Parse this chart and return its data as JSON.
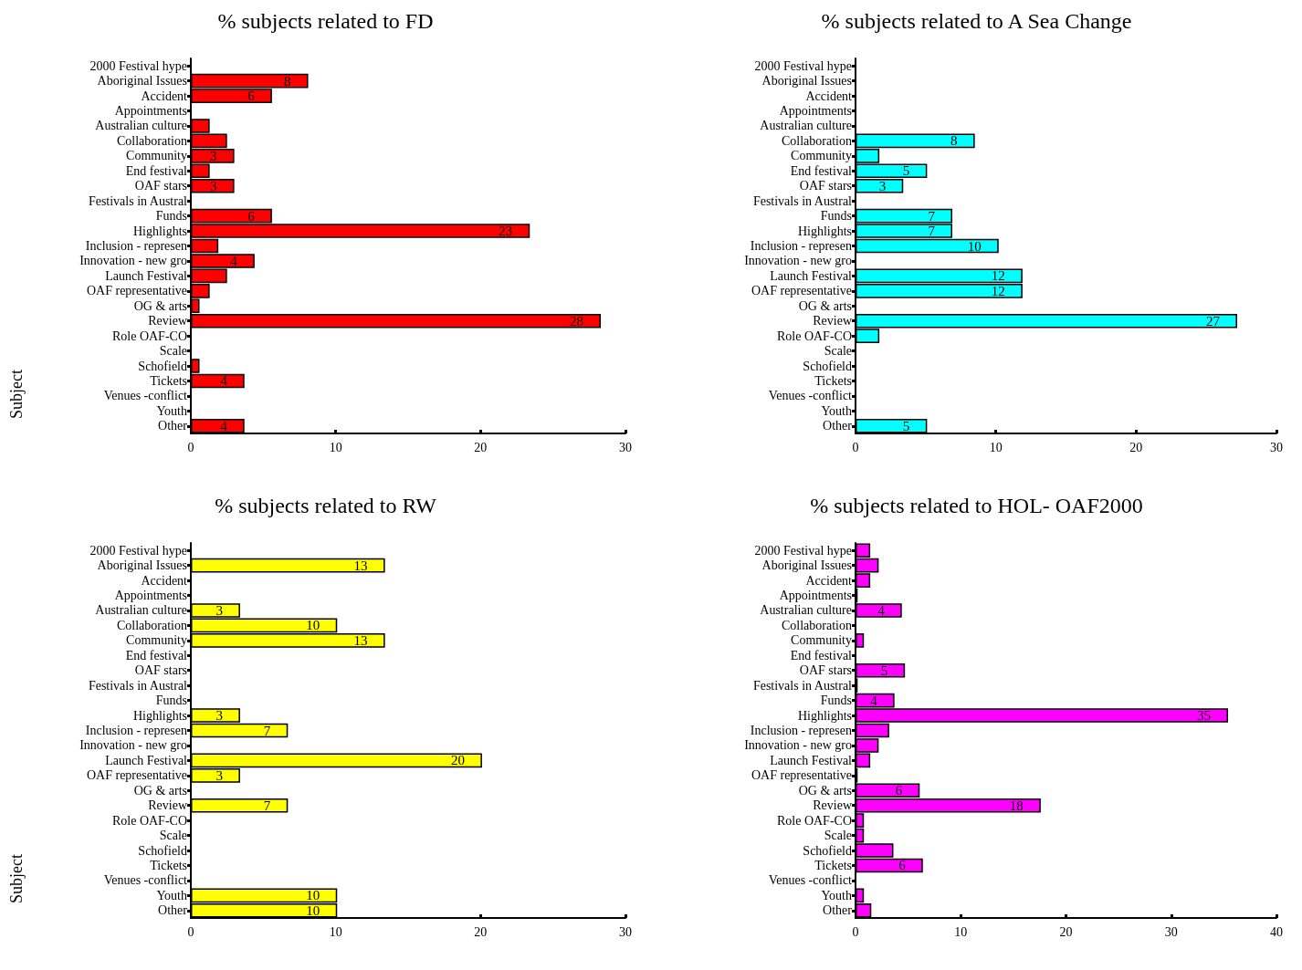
{
  "chart_data": [
    {
      "type": "bar",
      "orientation": "horizontal",
      "title": "% subjects related to FD",
      "ylabel": "Subject",
      "categories": [
        "2000 Festival hype",
        "Aboriginal Issues",
        "Accident",
        "Appointments",
        "Australian culture",
        "Collaboration",
        "Community",
        "End festival",
        "OAF stars",
        "Festivals in Austral",
        "Funds",
        "Highlights",
        "Inclusion - represen",
        "Innovation - new gro",
        "Launch Festival",
        "OAF representative",
        "OG & arts",
        "Review",
        "Role OAF-CO",
        "Scale",
        "Schofield",
        "Tickets",
        "Venues -conflict",
        "Youth",
        "Other"
      ],
      "series": [
        {
          "color": "#ff0000",
          "values": [
            0,
            8.1,
            5.6,
            0,
            1.3,
            2.5,
            3.0,
            1.3,
            3.0,
            0,
            5.6,
            23.4,
            1.9,
            4.4,
            2.5,
            1.3,
            0.6,
            28.3,
            0,
            0,
            0.6,
            3.7,
            0,
            0,
            3.7
          ],
          "value_labels": [
            null,
            "8",
            "6",
            null,
            null,
            null,
            "3",
            null,
            "3",
            null,
            "6",
            "23",
            null,
            "4",
            null,
            null,
            null,
            "28",
            null,
            null,
            null,
            "4",
            null,
            null,
            "4"
          ]
        }
      ],
      "xlim": [
        0,
        30
      ],
      "xticks": [
        0,
        10,
        20,
        30
      ],
      "grid": false
    },
    {
      "type": "bar",
      "orientation": "horizontal",
      "title": "% subjects related to A Sea Change",
      "categories": [
        "2000 Festival hype",
        "Aboriginal Issues",
        "Accident",
        "Appointments",
        "Australian culture",
        "Collaboration",
        "Community",
        "End festival",
        "OAF stars",
        "Festivals in Austral",
        "Funds",
        "Highlights",
        "Inclusion - represen",
        "Innovation - new gro",
        "Launch Festival",
        "OAF representative",
        "OG & arts",
        "Review",
        "Role OAF-CO",
        "Scale",
        "Schofield",
        "Tickets",
        "Venues -conflict",
        "Youth",
        "Other"
      ],
      "series": [
        {
          "color": "#00ffff",
          "values": [
            0,
            0,
            0,
            0,
            0,
            8.5,
            1.7,
            5.1,
            3.4,
            0,
            6.9,
            6.9,
            10.2,
            0,
            11.9,
            11.9,
            0,
            27.2,
            1.7,
            0,
            0,
            0,
            0,
            0,
            5.1
          ],
          "value_labels": [
            null,
            null,
            null,
            null,
            null,
            "8",
            null,
            "5",
            "3",
            null,
            "7",
            "7",
            "10",
            null,
            "12",
            "12",
            null,
            "27",
            null,
            null,
            null,
            null,
            null,
            null,
            "5"
          ]
        }
      ],
      "xlim": [
        0,
        30
      ],
      "xticks": [
        0,
        10,
        20,
        30
      ],
      "grid": false
    },
    {
      "type": "bar",
      "orientation": "horizontal",
      "title": "% subjects related to RW",
      "ylabel": "Subject",
      "categories": [
        "2000 Festival hype",
        "Aboriginal Issues",
        "Accident",
        "Appointments",
        "Australian culture",
        "Collaboration",
        "Community",
        "End festival",
        "OAF stars",
        "Festivals in Austral",
        "Funds",
        "Highlights",
        "Inclusion - represen",
        "Innovation - new gro",
        "Launch Festival",
        "OAF representative",
        "OG & arts",
        "Review",
        "Role OAF-CO",
        "Scale",
        "Schofield",
        "Tickets",
        "Venues -conflict",
        "Youth",
        "Other"
      ],
      "series": [
        {
          "color": "#ffff00",
          "values": [
            0,
            13.4,
            0,
            0,
            3.4,
            10.1,
            13.4,
            0,
            0,
            0,
            0,
            3.4,
            6.7,
            0,
            20.1,
            3.4,
            0,
            6.7,
            0,
            0,
            0,
            0,
            0,
            10.1,
            10.1
          ],
          "value_labels": [
            null,
            "13",
            null,
            null,
            "3",
            "10",
            "13",
            null,
            null,
            null,
            null,
            "3",
            "7",
            null,
            "20",
            "3",
            null,
            "7",
            null,
            null,
            null,
            null,
            null,
            "10",
            "10"
          ]
        }
      ],
      "xlim": [
        0,
        30
      ],
      "xticks": [
        0,
        10,
        20,
        30
      ],
      "grid": false
    },
    {
      "type": "bar",
      "orientation": "horizontal",
      "title": "% subjects related to HOL- OAF2000",
      "categories": [
        "2000 Festival hype",
        "Aboriginal Issues",
        "Accident",
        "Appointments",
        "Australian culture",
        "Collaboration",
        "Community",
        "End festival",
        "OAF stars",
        "Festivals in Austral",
        "Funds",
        "Highlights",
        "Inclusion - represen",
        "Innovation - new gro",
        "Launch Festival",
        "OAF representative",
        "OG & arts",
        "Review",
        "Role OAF-CO",
        "Scale",
        "Schofield",
        "Tickets",
        "Venues -conflict",
        "Youth",
        "Other"
      ],
      "series": [
        {
          "color": "#ff00ff",
          "values": [
            1.4,
            2.2,
            1.4,
            0.2,
            4.4,
            0,
            0.8,
            0,
            4.7,
            0.2,
            3.7,
            35.4,
            3.2,
            2.2,
            1.4,
            0.2,
            6.1,
            17.6,
            0.8,
            0.8,
            3.6,
            6.4,
            0,
            0.8,
            1.5
          ],
          "value_labels": [
            null,
            null,
            null,
            null,
            "4",
            null,
            null,
            null,
            "5",
            null,
            "4",
            "35",
            null,
            null,
            null,
            null,
            "6",
            "18",
            null,
            null,
            null,
            "6",
            null,
            null,
            null
          ]
        }
      ],
      "xlim": [
        0,
        40
      ],
      "xticks": [
        0,
        10,
        20,
        30,
        40
      ],
      "grid": false
    }
  ]
}
